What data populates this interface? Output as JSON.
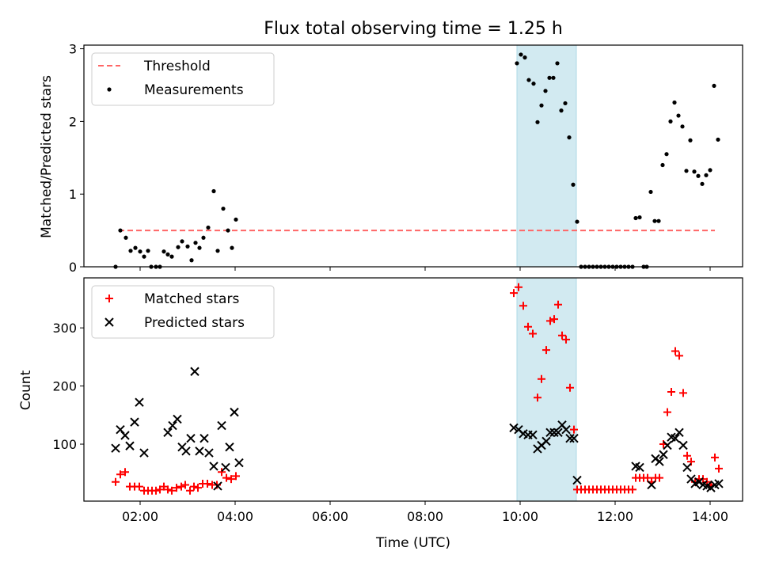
{
  "title": "Flux total observing time = 1.25 h",
  "colors": {
    "threshold": "#ff6666",
    "shade": "#add8e6",
    "matched": "#ff0000",
    "predicted": "#000000",
    "measure": "#000000"
  },
  "chart_data": [
    {
      "type": "scatter",
      "ylabel": "Matched/Predicted stars",
      "xlabel": "",
      "ylim": [
        0,
        3.05
      ],
      "yticks": [
        "0",
        "1",
        "2",
        "3"
      ],
      "shaded_interval": [
        "09:56",
        "11:11"
      ],
      "legend": [
        "Threshold",
        "Measurements"
      ],
      "legend_position": "upper-left",
      "threshold": {
        "name": "Threshold",
        "value": 0.5,
        "x": [
          "01:33",
          "14:06"
        ]
      },
      "series": [
        {
          "name": "Measurements",
          "points": [
            [
              "01:29",
              0.0
            ],
            [
              "01:35",
              0.5
            ],
            [
              "01:42",
              0.4
            ],
            [
              "01:48",
              0.22
            ],
            [
              "01:54",
              0.26
            ],
            [
              "02:00",
              0.21
            ],
            [
              "02:05",
              0.14
            ],
            [
              "02:10",
              0.22
            ],
            [
              "02:14",
              0.0
            ],
            [
              "02:20",
              0.0
            ],
            [
              "02:25",
              0.0
            ],
            [
              "02:30",
              0.21
            ],
            [
              "02:35",
              0.17
            ],
            [
              "02:40",
              0.14
            ],
            [
              "02:48",
              0.27
            ],
            [
              "02:53",
              0.35
            ],
            [
              "03:00",
              0.28
            ],
            [
              "03:05",
              0.09
            ],
            [
              "03:10",
              0.33
            ],
            [
              "03:15",
              0.26
            ],
            [
              "03:20",
              0.4
            ],
            [
              "03:26",
              0.54
            ],
            [
              "03:33",
              1.04
            ],
            [
              "03:38",
              0.22
            ],
            [
              "03:45",
              0.8
            ],
            [
              "03:51",
              0.5
            ],
            [
              "03:56",
              0.26
            ],
            [
              "04:01",
              0.65
            ],
            [
              "09:56",
              2.8
            ],
            [
              "10:01",
              2.92
            ],
            [
              "10:06",
              2.88
            ],
            [
              "10:11",
              2.57
            ],
            [
              "10:17",
              2.52
            ],
            [
              "10:22",
              1.99
            ],
            [
              "10:27",
              2.22
            ],
            [
              "10:32",
              2.42
            ],
            [
              "10:37",
              2.6
            ],
            [
              "10:42",
              2.6
            ],
            [
              "10:47",
              2.8
            ],
            [
              "10:52",
              2.15
            ],
            [
              "10:57",
              2.25
            ],
            [
              "11:02",
              1.78
            ],
            [
              "11:07",
              1.13
            ],
            [
              "11:12",
              0.62
            ],
            [
              "11:17",
              0.0
            ],
            [
              "11:22",
              0.0
            ],
            [
              "11:27",
              0.0
            ],
            [
              "11:32",
              0.0
            ],
            [
              "11:37",
              0.0
            ],
            [
              "11:42",
              0.0
            ],
            [
              "11:47",
              0.0
            ],
            [
              "11:52",
              0.0
            ],
            [
              "11:57",
              0.0
            ],
            [
              "12:02",
              0.0
            ],
            [
              "12:07",
              0.0
            ],
            [
              "12:12",
              0.0
            ],
            [
              "12:17",
              0.0
            ],
            [
              "12:22",
              0.0
            ],
            [
              "12:26",
              0.67
            ],
            [
              "12:31",
              0.68
            ],
            [
              "12:36",
              0.0
            ],
            [
              "12:40",
              0.0
            ],
            [
              "12:45",
              1.03
            ],
            [
              "12:50",
              0.63
            ],
            [
              "12:55",
              0.63
            ],
            [
              "13:00",
              1.4
            ],
            [
              "13:05",
              1.55
            ],
            [
              "13:10",
              2.0
            ],
            [
              "13:15",
              2.26
            ],
            [
              "13:20",
              2.08
            ],
            [
              "13:25",
              1.93
            ],
            [
              "13:30",
              1.32
            ],
            [
              "13:35",
              1.74
            ],
            [
              "13:40",
              1.31
            ],
            [
              "13:45",
              1.25
            ],
            [
              "13:50",
              1.14
            ],
            [
              "13:55",
              1.26
            ],
            [
              "14:00",
              1.33
            ],
            [
              "14:05",
              2.49
            ],
            [
              "14:10",
              1.75
            ]
          ]
        }
      ]
    },
    {
      "type": "scatter",
      "ylabel": "Count",
      "xlabel": "Time (UTC)",
      "ylim": [
        2,
        386
      ],
      "yticks": [
        "100",
        "200",
        "300"
      ],
      "xticks": [
        "02:00",
        "04:00",
        "06:00",
        "08:00",
        "10:00",
        "12:00",
        "14:00"
      ],
      "xlim": [
        "00:49",
        "14:41"
      ],
      "shaded_interval": [
        "09:56",
        "11:11"
      ],
      "legend": [
        "Matched stars",
        "Predicted stars"
      ],
      "legend_position": "upper-left",
      "series": [
        {
          "name": "Matched stars",
          "points": [
            [
              "01:29",
              35
            ],
            [
              "01:35",
              48
            ],
            [
              "01:41",
              52
            ],
            [
              "01:47",
              27
            ],
            [
              "01:53",
              27
            ],
            [
              "01:59",
              27
            ],
            [
              "02:05",
              20
            ],
            [
              "02:10",
              20
            ],
            [
              "02:15",
              20
            ],
            [
              "02:20",
              20
            ],
            [
              "02:25",
              22
            ],
            [
              "02:30",
              27
            ],
            [
              "02:35",
              22
            ],
            [
              "02:40",
              20
            ],
            [
              "02:46",
              25
            ],
            [
              "02:52",
              27
            ],
            [
              "02:57",
              30
            ],
            [
              "03:03",
              20
            ],
            [
              "03:08",
              27
            ],
            [
              "03:13",
              25
            ],
            [
              "03:19",
              32
            ],
            [
              "03:25",
              32
            ],
            [
              "03:31",
              30
            ],
            [
              "03:37",
              30
            ],
            [
              "03:43",
              52
            ],
            [
              "03:49",
              42
            ],
            [
              "03:55",
              40
            ],
            [
              "04:01",
              45
            ],
            [
              "09:52",
              360
            ],
            [
              "09:58",
              370
            ],
            [
              "10:04",
              338
            ],
            [
              "10:10",
              302
            ],
            [
              "10:16",
              290
            ],
            [
              "10:22",
              180
            ],
            [
              "10:27",
              212
            ],
            [
              "10:33",
              262
            ],
            [
              "10:38",
              312
            ],
            [
              "10:43",
              315
            ],
            [
              "10:48",
              340
            ],
            [
              "10:53",
              287
            ],
            [
              "10:58",
              280
            ],
            [
              "11:03",
              197
            ],
            [
              "11:08",
              125
            ],
            [
              "11:12",
              22
            ],
            [
              "11:17",
              22
            ],
            [
              "11:22",
              22
            ],
            [
              "11:27",
              22
            ],
            [
              "11:32",
              22
            ],
            [
              "11:37",
              22
            ],
            [
              "11:42",
              22
            ],
            [
              "11:47",
              22
            ],
            [
              "11:52",
              22
            ],
            [
              "11:57",
              22
            ],
            [
              "12:02",
              22
            ],
            [
              "12:07",
              22
            ],
            [
              "12:12",
              22
            ],
            [
              "12:17",
              22
            ],
            [
              "12:22",
              22
            ],
            [
              "12:26",
              42
            ],
            [
              "12:31",
              42
            ],
            [
              "12:36",
              42
            ],
            [
              "12:41",
              42
            ],
            [
              "12:46",
              35
            ],
            [
              "12:51",
              42
            ],
            [
              "12:56",
              42
            ],
            [
              "13:01",
              100
            ],
            [
              "13:06",
              155
            ],
            [
              "13:11",
              190
            ],
            [
              "13:16",
              260
            ],
            [
              "13:21",
              252
            ],
            [
              "13:26",
              188
            ],
            [
              "13:31",
              80
            ],
            [
              "13:36",
              70
            ],
            [
              "13:41",
              35
            ],
            [
              "13:46",
              40
            ],
            [
              "13:51",
              40
            ],
            [
              "13:56",
              35
            ],
            [
              "14:01",
              30
            ],
            [
              "14:06",
              77
            ],
            [
              "14:11",
              58
            ]
          ]
        },
        {
          "name": "Predicted stars",
          "points": [
            [
              "01:29",
              93
            ],
            [
              "01:35",
              125
            ],
            [
              "01:41",
              115
            ],
            [
              "01:47",
              97
            ],
            [
              "01:53",
              138
            ],
            [
              "01:59",
              172
            ],
            [
              "02:05",
              85
            ],
            [
              "02:35",
              120
            ],
            [
              "02:41",
              132
            ],
            [
              "02:47",
              143
            ],
            [
              "02:53",
              95
            ],
            [
              "02:58",
              88
            ],
            [
              "03:04",
              110
            ],
            [
              "03:09",
              225
            ],
            [
              "03:15",
              88
            ],
            [
              "03:21",
              110
            ],
            [
              "03:27",
              85
            ],
            [
              "03:33",
              62
            ],
            [
              "03:38",
              28
            ],
            [
              "03:43",
              132
            ],
            [
              "03:48",
              60
            ],
            [
              "03:53",
              95
            ],
            [
              "03:59",
              155
            ],
            [
              "04:05",
              68
            ],
            [
              "09:52",
              128
            ],
            [
              "09:58",
              125
            ],
            [
              "10:04",
              118
            ],
            [
              "10:10",
              116
            ],
            [
              "10:16",
              116
            ],
            [
              "10:22",
              92
            ],
            [
              "10:27",
              98
            ],
            [
              "10:33",
              105
            ],
            [
              "10:38",
              120
            ],
            [
              "10:43",
              120
            ],
            [
              "10:48",
              120
            ],
            [
              "10:53",
              133
            ],
            [
              "10:58",
              125
            ],
            [
              "11:03",
              110
            ],
            [
              "11:08",
              110
            ],
            [
              "11:12",
              38
            ],
            [
              "12:26",
              62
            ],
            [
              "12:31",
              60
            ],
            [
              "12:46",
              30
            ],
            [
              "12:51",
              75
            ],
            [
              "12:56",
              70
            ],
            [
              "13:01",
              82
            ],
            [
              "13:06",
              98
            ],
            [
              "13:11",
              112
            ],
            [
              "13:16",
              110
            ],
            [
              "13:21",
              120
            ],
            [
              "13:26",
              98
            ],
            [
              "13:31",
              60
            ],
            [
              "13:36",
              40
            ],
            [
              "13:41",
              32
            ],
            [
              "13:46",
              35
            ],
            [
              "13:51",
              30
            ],
            [
              "13:56",
              28
            ],
            [
              "14:01",
              25
            ],
            [
              "14:06",
              30
            ],
            [
              "14:11",
              32
            ]
          ]
        }
      ]
    }
  ]
}
